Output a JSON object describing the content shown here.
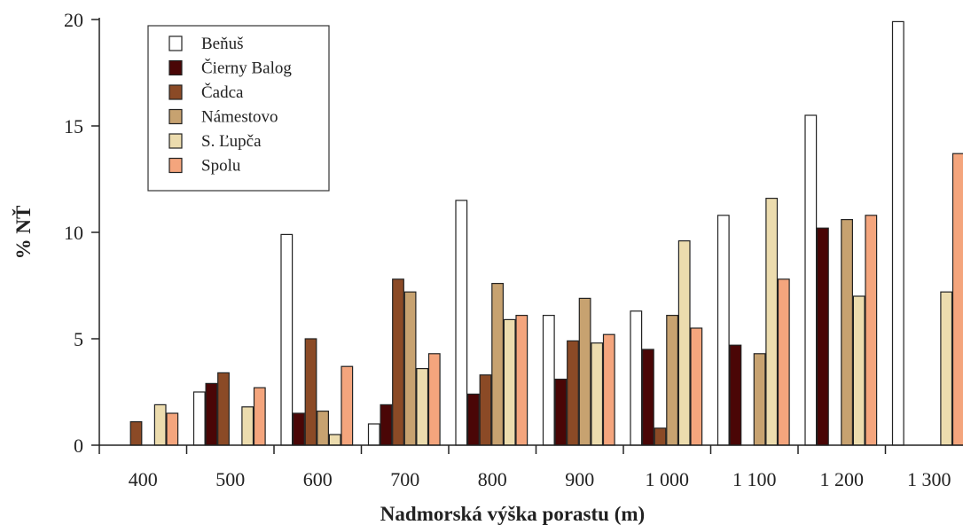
{
  "chart_data": {
    "type": "bar",
    "title": "",
    "xlabel": "Nadmorská výška porastu (m)",
    "ylabel": "% NŤ",
    "ylim": [
      0,
      20
    ],
    "yticks": [
      "0",
      "5",
      "10",
      "15",
      "20"
    ],
    "categories": [
      "400",
      "500",
      "600",
      "700",
      "800",
      "900",
      "1 000",
      "1 100",
      "1 200",
      "1 300"
    ],
    "legend_position": "top-left",
    "grid": false,
    "series": [
      {
        "name": "Beňuš",
        "color": "#ffffff",
        "values": [
          0,
          2.5,
          9.9,
          1.0,
          11.5,
          6.1,
          6.3,
          10.8,
          15.5,
          19.9
        ]
      },
      {
        "name": "Čierny Balog",
        "color": "#4a0606",
        "values": [
          0,
          2.9,
          1.5,
          1.9,
          2.4,
          3.1,
          4.5,
          4.7,
          10.2,
          0
        ]
      },
      {
        "name": "Čadca",
        "color": "#8b4a26",
        "values": [
          1.1,
          3.4,
          5.0,
          7.8,
          3.3,
          4.9,
          0.8,
          0,
          0,
          0
        ]
      },
      {
        "name": "Námestovo",
        "color": "#c7a270",
        "values": [
          0,
          0,
          1.6,
          7.2,
          7.6,
          6.9,
          6.1,
          4.3,
          10.6,
          0
        ]
      },
      {
        "name": "S. Ľupča",
        "color": "#ecdcae",
        "values": [
          1.9,
          1.8,
          0.5,
          3.6,
          5.9,
          4.8,
          9.6,
          11.6,
          7.0,
          7.2
        ]
      },
      {
        "name": "Spolu",
        "color": "#f4a57d",
        "values": [
          1.5,
          2.7,
          3.7,
          4.3,
          6.1,
          5.2,
          5.5,
          7.8,
          10.8,
          13.7
        ]
      }
    ]
  }
}
